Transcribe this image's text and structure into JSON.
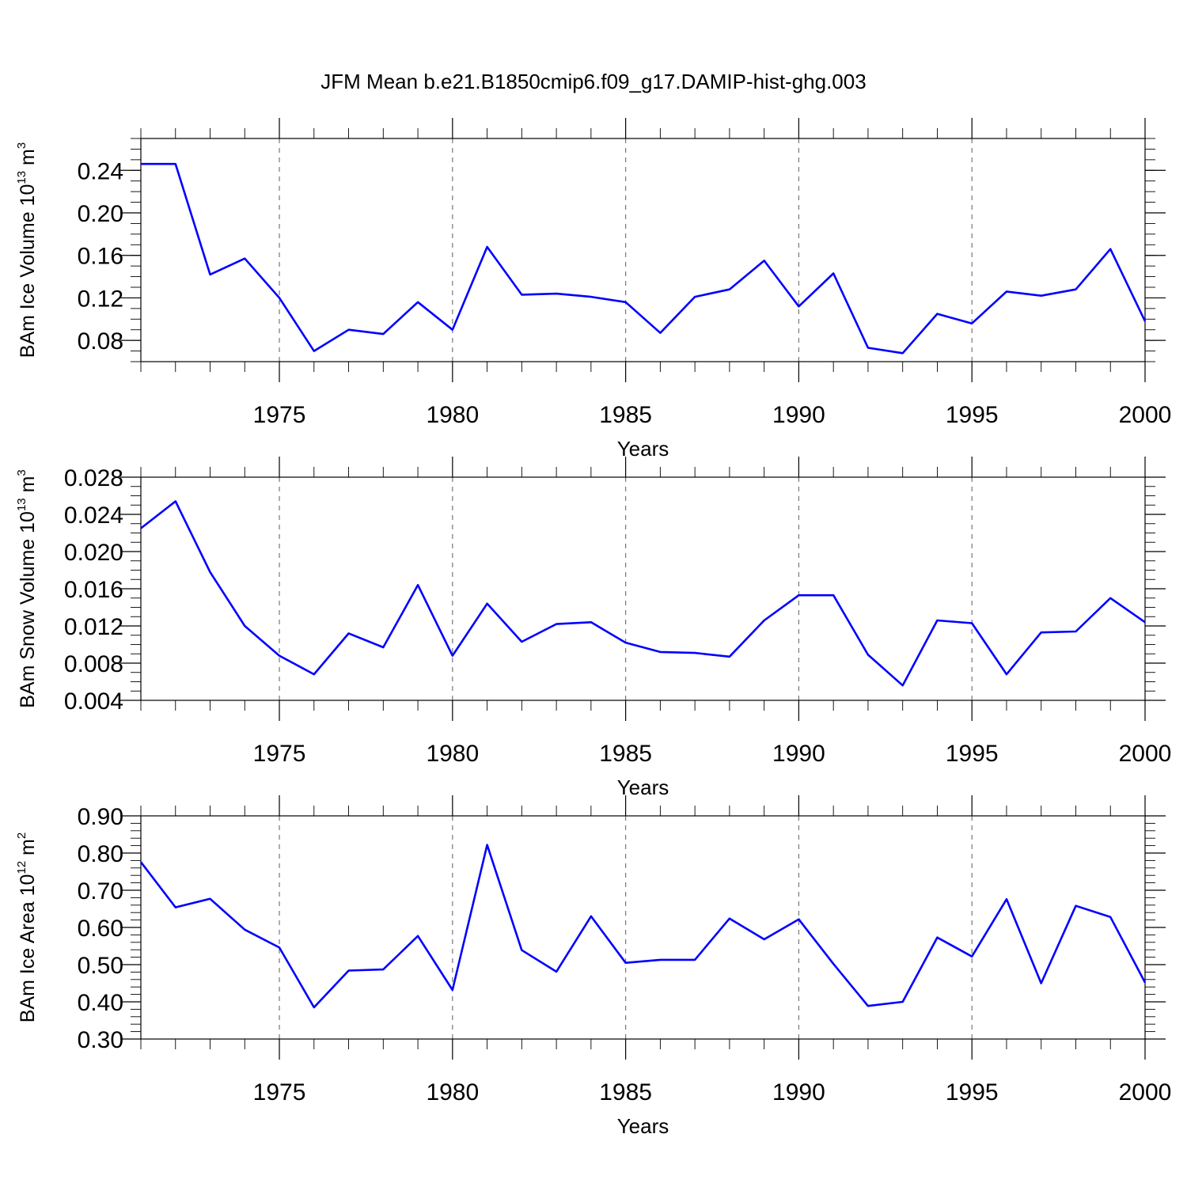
{
  "figure": {
    "title": "JFM Mean b.e21.B1850cmip6.f09_g17.DAMIP-hist-ghg.003"
  },
  "chart_data": [
    {
      "type": "line",
      "xlabel": "Years",
      "ylabel": {
        "text": "BAm Ice Volume 10",
        "exp": "13",
        "unit": " m",
        "unit_exp": "3"
      },
      "xlim": [
        1971,
        2000
      ],
      "ylim": [
        0.06,
        0.27
      ],
      "xticks": [
        1975,
        1980,
        1985,
        1990,
        1995,
        2000
      ],
      "yticks": [
        "0.08",
        "0.12",
        "0.16",
        "0.20",
        "0.24"
      ],
      "ytick_step_minor": 0.01,
      "grid": "vertical dashed at major x ticks",
      "color": "#0000ff",
      "x": [
        1971,
        1972,
        1973,
        1974,
        1975,
        1976,
        1977,
        1978,
        1979,
        1980,
        1981,
        1982,
        1983,
        1984,
        1985,
        1986,
        1987,
        1988,
        1989,
        1990,
        1991,
        1992,
        1993,
        1994,
        1995,
        1996,
        1997,
        1998,
        1999,
        2000
      ],
      "y": [
        0.246,
        0.246,
        0.142,
        0.157,
        0.12,
        0.07,
        0.09,
        0.086,
        0.116,
        0.09,
        0.168,
        0.123,
        0.124,
        0.121,
        0.116,
        0.087,
        0.121,
        0.128,
        0.155,
        0.112,
        0.143,
        0.073,
        0.068,
        0.105,
        0.096,
        0.126,
        0.122,
        0.128,
        0.166,
        0.098
      ]
    },
    {
      "type": "line",
      "xlabel": "Years",
      "ylabel": {
        "text": "BAm Snow Volume 10",
        "exp": "13",
        "unit": " m",
        "unit_exp": "3"
      },
      "xlim": [
        1971,
        2000
      ],
      "ylim": [
        0.004,
        0.028
      ],
      "xticks": [
        1975,
        1980,
        1985,
        1990,
        1995,
        2000
      ],
      "yticks": [
        "0.004",
        "0.008",
        "0.012",
        "0.016",
        "0.020",
        "0.024",
        "0.028"
      ],
      "ytick_step_minor": 0.001,
      "grid": "vertical dashed at major x ticks",
      "color": "#0000ff",
      "x": [
        1971,
        1972,
        1973,
        1974,
        1975,
        1976,
        1977,
        1978,
        1979,
        1980,
        1981,
        1982,
        1983,
        1984,
        1985,
        1986,
        1987,
        1988,
        1989,
        1990,
        1991,
        1992,
        1993,
        1994,
        1995,
        1996,
        1997,
        1998,
        1999,
        2000
      ],
      "y": [
        0.0225,
        0.0254,
        0.0178,
        0.012,
        0.0088,
        0.0068,
        0.0112,
        0.0097,
        0.0164,
        0.0088,
        0.0144,
        0.0103,
        0.0122,
        0.0124,
        0.0102,
        0.0092,
        0.0091,
        0.0087,
        0.0126,
        0.0153,
        0.0153,
        0.0089,
        0.0056,
        0.0126,
        0.0123,
        0.0068,
        0.0113,
        0.0114,
        0.015,
        0.0124
      ]
    },
    {
      "type": "line",
      "xlabel": "Years",
      "ylabel": {
        "text": "BAm Ice Area 10",
        "exp": "12",
        "unit": " m",
        "unit_exp": "2"
      },
      "xlim": [
        1971,
        2000
      ],
      "ylim": [
        0.3,
        0.9
      ],
      "xticks": [
        1975,
        1980,
        1985,
        1990,
        1995,
        2000
      ],
      "yticks": [
        "0.30",
        "0.40",
        "0.50",
        "0.60",
        "0.70",
        "0.80",
        "0.90"
      ],
      "ytick_step_minor": 0.02,
      "grid": "vertical dashed at major x ticks",
      "color": "#0000ff",
      "x": [
        1971,
        1972,
        1973,
        1974,
        1975,
        1976,
        1977,
        1978,
        1979,
        1980,
        1981,
        1982,
        1983,
        1984,
        1985,
        1986,
        1987,
        1988,
        1989,
        1990,
        1991,
        1992,
        1993,
        1994,
        1995,
        1996,
        1997,
        1998,
        1999,
        2000
      ],
      "y": [
        0.776,
        0.654,
        0.677,
        0.594,
        0.546,
        0.385,
        0.484,
        0.487,
        0.577,
        0.432,
        0.822,
        0.539,
        0.481,
        0.63,
        0.505,
        0.513,
        0.513,
        0.624,
        0.568,
        0.622,
        0.502,
        0.389,
        0.4,
        0.573,
        0.522,
        0.676,
        0.45,
        0.658,
        0.628,
        0.452
      ]
    }
  ]
}
